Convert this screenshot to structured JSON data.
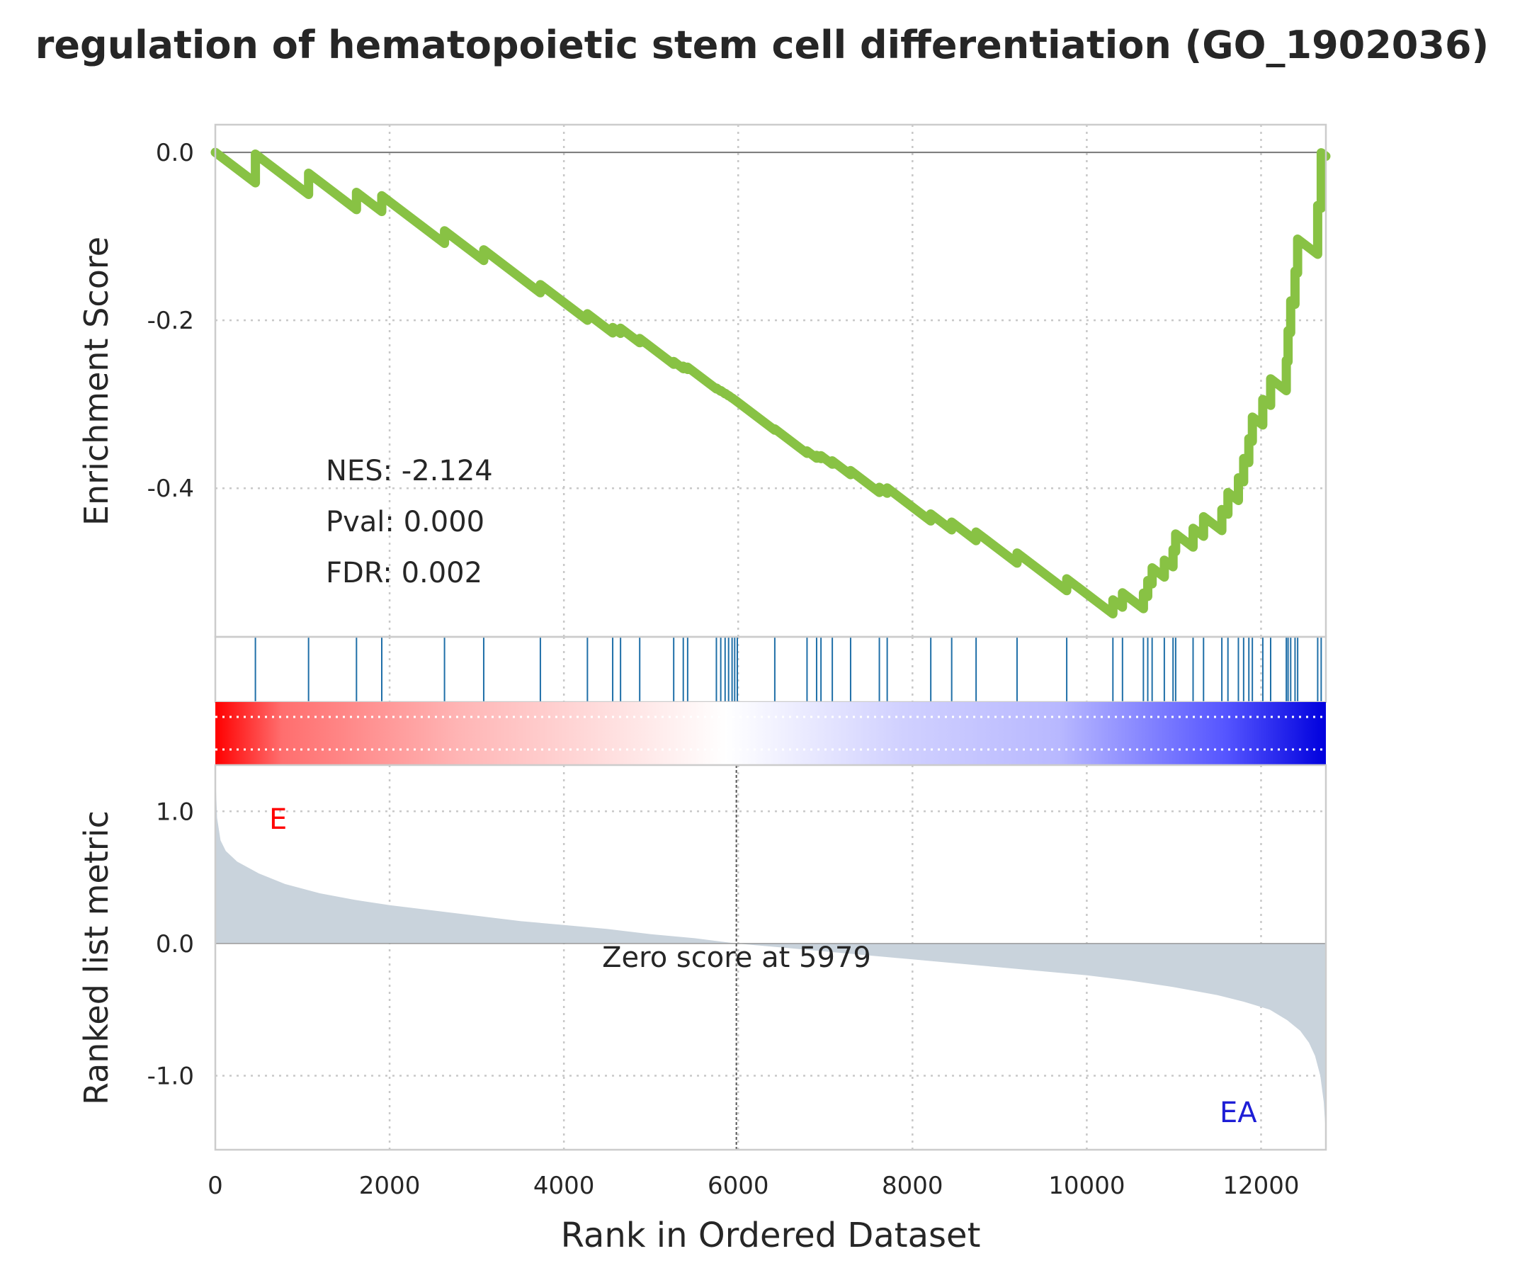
{
  "chart_data": {
    "type": "line",
    "title": "regulation of hematopoietic stem cell differentiation (GO_1902036)",
    "xlabel": "Rank in Ordered Dataset",
    "xlim": [
      0,
      12744
    ],
    "x_ticks": [
      0,
      2000,
      4000,
      6000,
      8000,
      10000,
      12000
    ],
    "enrichment": {
      "ylabel": "Enrichment Score",
      "ylim": [
        -0.577,
        0.033
      ],
      "y_ticks": [
        0.0,
        -0.2,
        -0.4
      ],
      "y_tick_labels": [
        "0.0",
        "-0.2",
        "-0.4"
      ],
      "line_color": "#88c244",
      "hits": [
        460,
        1070,
        1620,
        1910,
        2630,
        3080,
        3730,
        4270,
        4560,
        4650,
        4870,
        5260,
        5370,
        5420,
        5750,
        5800,
        5850,
        5890,
        5930,
        5960,
        5990,
        6420,
        6790,
        6900,
        6950,
        7080,
        7290,
        7620,
        7710,
        8210,
        8450,
        8730,
        9200,
        9770,
        10300,
        10410,
        10650,
        10700,
        10750,
        10890,
        10990,
        11020,
        11220,
        11340,
        11550,
        11620,
        11740,
        11800,
        11860,
        11900,
        12020,
        12110,
        12290,
        12310,
        12340,
        12390,
        12420,
        12650,
        12690
      ],
      "hit_color": "#1f6fa8",
      "stats": {
        "nes": "NES: -2.124",
        "pval": "Pval: 0.000",
        "fdr": "FDR: 0.002"
      }
    },
    "ranked": {
      "ylabel": "Ranked list metric",
      "ylim": [
        -1.56,
        1.35
      ],
      "y_ticks": [
        1.0,
        0.0,
        -1.0
      ],
      "y_tick_labels": [
        "1.0",
        "0.0",
        "-1.0"
      ],
      "fill_color": "#c9d3dc",
      "metric_x": [
        0,
        20,
        60,
        120,
        250,
        500,
        800,
        1200,
        1600,
        2000,
        2500,
        3000,
        3500,
        4000,
        4500,
        5000,
        5500,
        5979,
        6500,
        7000,
        7500,
        8000,
        8500,
        9000,
        9500,
        10000,
        10500,
        11000,
        11500,
        11800,
        12100,
        12300,
        12450,
        12550,
        12620,
        12680,
        12720,
        12744
      ],
      "metric_y": [
        1.3,
        0.95,
        0.78,
        0.7,
        0.62,
        0.53,
        0.45,
        0.38,
        0.33,
        0.29,
        0.25,
        0.21,
        0.17,
        0.14,
        0.11,
        0.07,
        0.04,
        0.0,
        -0.03,
        -0.06,
        -0.09,
        -0.12,
        -0.15,
        -0.18,
        -0.21,
        -0.24,
        -0.28,
        -0.33,
        -0.39,
        -0.44,
        -0.5,
        -0.58,
        -0.66,
        -0.75,
        -0.85,
        -1.0,
        -1.2,
        -1.45
      ],
      "zero_score_rank": 5979,
      "zero_label": "Zero score at 5979",
      "pos_label": "E",
      "pos_label_color": "#ff0000",
      "neg_label": "EA",
      "neg_label_color": "#1e1ed6"
    },
    "colorbar": {
      "colors": [
        "#ff0000",
        "#ff6e6e",
        "#ffb5b5",
        "#ffffff",
        "#d0d0ff",
        "#b8b8ff",
        "#5555ff",
        "#0000dd"
      ]
    },
    "grid": true
  }
}
